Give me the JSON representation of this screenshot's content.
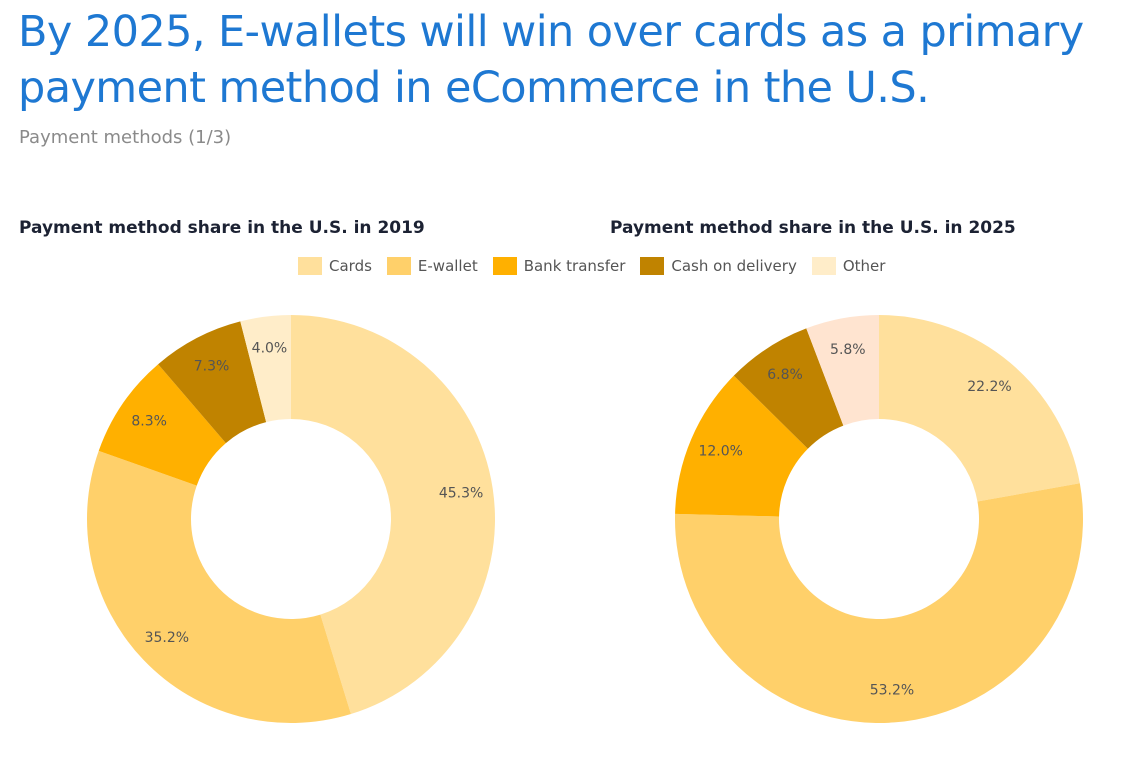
{
  "header": {
    "title": "By 2025, E-wallets will win over cards as a primary payment method in eCommerce in the U.S.",
    "subtitle": "Payment methods (1/3)"
  },
  "legend": [
    {
      "label": "Cards",
      "color": "#ffe09c"
    },
    {
      "label": "E-wallet",
      "color": "#ffd06a"
    },
    {
      "label": "Bank transfer",
      "color": "#ffb000"
    },
    {
      "label": "Cash on delivery",
      "color": "#c08300"
    },
    {
      "label": "Other",
      "color": "#ffedc9"
    }
  ],
  "chart_data": [
    {
      "type": "pie",
      "donut": true,
      "title": "Payment method share in the U.S. in 2019",
      "categories": [
        "Cards",
        "E-wallet",
        "Bank transfer",
        "Cash on delivery",
        "Other"
      ],
      "values": [
        45.3,
        35.2,
        8.3,
        7.3,
        4.0
      ],
      "labels": [
        "45.3%",
        "35.2%",
        "8.3%",
        "7.3%",
        "4.0%"
      ],
      "colors": [
        "#ffe09c",
        "#ffd06a",
        "#ffb000",
        "#c08300",
        "#ffedc9"
      ]
    },
    {
      "type": "pie",
      "donut": true,
      "title": "Payment method share in the U.S. in 2025",
      "categories": [
        "Cards",
        "E-wallet",
        "Bank transfer",
        "Cash on delivery",
        "Other"
      ],
      "values": [
        22.2,
        53.2,
        12.0,
        6.8,
        5.8
      ],
      "labels": [
        "22.2%",
        "53.2%",
        "12.0%",
        "6.8%",
        "5.8%"
      ],
      "colors": [
        "#ffe09c",
        "#ffd06a",
        "#ffb000",
        "#c08300",
        "#ffe4d0"
      ]
    }
  ]
}
